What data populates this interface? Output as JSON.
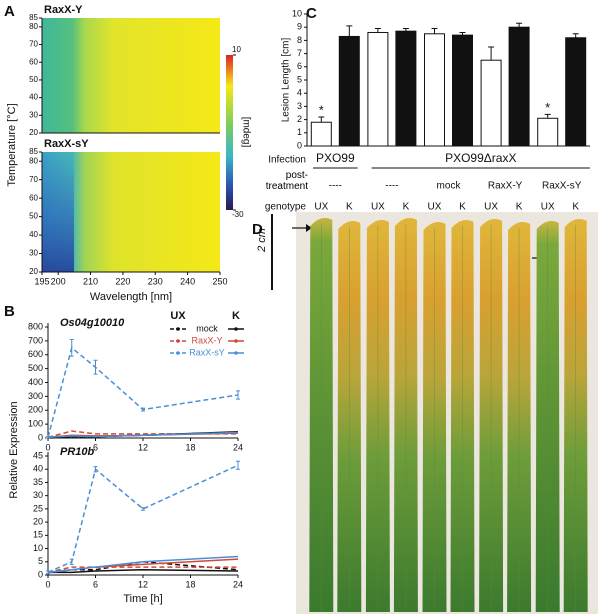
{
  "panel_labels": [
    "A",
    "B",
    "C",
    "D"
  ],
  "chart_data": [
    {
      "type": "heatmap",
      "panels": [
        {
          "title": "RaxX-Y"
        },
        {
          "title": "RaxX-sY"
        }
      ],
      "xlabel": "Wavelength [nm]",
      "ylabel": "Temperature [°C]",
      "xlim": [
        195,
        250
      ],
      "xticks": [
        195,
        200,
        210,
        220,
        230,
        240,
        250
      ],
      "ylim": [
        20,
        85
      ],
      "yticks": [
        20,
        30,
        40,
        50,
        60,
        70,
        80,
        85
      ],
      "colorbar": {
        "label": "[mdeg]",
        "lim": [
          -30,
          10
        ],
        "ticks": [
          -30,
          10
        ]
      }
    },
    {
      "type": "line",
      "title": "Os04g10010",
      "ylabel": "Relative Expression",
      "x": [
        0,
        3,
        6,
        12,
        24
      ],
      "xlim": [
        0,
        24
      ],
      "xticks": [
        0,
        6,
        12,
        18,
        24
      ],
      "ylim": [
        0,
        800
      ],
      "yticks": [
        0,
        100,
        200,
        300,
        400,
        500,
        600,
        700,
        800
      ],
      "legend": true,
      "series_groups": [
        {
          "name": "UX",
          "dashed": true,
          "series": [
            {
              "name": "mock",
              "color": "#111111",
              "values": [
                0,
                10,
                10,
                20,
                40
              ]
            },
            {
              "name": "RaxX-Y",
              "color": "#d0493a",
              "values": [
                5,
                50,
                30,
                30,
                30
              ]
            },
            {
              "name": "RaxX-sY",
              "color": "#4a8fd6",
              "values": [
                5,
                650,
                510,
                205,
                310
              ],
              "errors": [
                5,
                60,
                50,
                10,
                30
              ]
            }
          ]
        },
        {
          "name": "K",
          "dashed": false,
          "series": [
            {
              "color": "#111111",
              "values": [
                5,
                10,
                10,
                20,
                45
              ]
            },
            {
              "color": "#d0493a",
              "values": [
                5,
                20,
                15,
                20,
                35
              ]
            },
            {
              "color": "#4a8fd6",
              "values": [
                5,
                15,
                10,
                20,
                40
              ]
            }
          ]
        }
      ]
    },
    {
      "type": "line",
      "title": "PR10b",
      "xlabel": "Time [h]",
      "x": [
        0,
        3,
        6,
        12,
        24
      ],
      "xlim": [
        0,
        24
      ],
      "xticks": [
        0,
        6,
        12,
        18,
        24
      ],
      "ylim": [
        0,
        45
      ],
      "yticks": [
        0,
        5,
        10,
        15,
        20,
        25,
        30,
        35,
        40,
        45
      ],
      "legend": false,
      "series_groups": [
        {
          "dashed": true,
          "series": [
            {
              "color": "#111111",
              "values": [
                1,
                2,
                2,
                5,
                2
              ]
            },
            {
              "color": "#d0493a",
              "values": [
                1,
                3,
                3,
                3,
                3
              ]
            },
            {
              "color": "#4a8fd6",
              "values": [
                1,
                5,
                40,
                25,
                41.5
              ],
              "errors": [
                0.5,
                1,
                1,
                0.5,
                1.5
              ]
            }
          ]
        },
        {
          "dashed": false,
          "series": [
            {
              "color": "#111111",
              "values": [
                1,
                1,
                1.5,
                2,
                1.5
              ]
            },
            {
              "color": "#d0493a",
              "values": [
                1,
                2,
                3,
                4,
                6
              ]
            },
            {
              "color": "#4a8fd6",
              "values": [
                1,
                2,
                3,
                5,
                7
              ]
            }
          ]
        }
      ]
    },
    {
      "type": "bar",
      "ylabel": "Lesion Length [cm]",
      "ylim": [
        0,
        10
      ],
      "yticks": [
        0,
        1,
        2,
        3,
        4,
        5,
        6,
        7,
        8,
        9,
        10
      ],
      "row_labels": [
        "Infection",
        "post-treatment",
        "genotype"
      ],
      "infection": [
        "PXO99",
        "PXO99ΔraxX"
      ],
      "categories": [
        "----",
        "----",
        "mock",
        "RaxX-Y",
        "RaxX-sY"
      ],
      "series": [
        {
          "name": "UX",
          "color": "#ffffff",
          "values": [
            1.8,
            8.6,
            8.5,
            6.5,
            2.1
          ],
          "errors": [
            0.4,
            0.3,
            0.4,
            1.0,
            0.3
          ],
          "annotations": [
            "*",
            null,
            null,
            null,
            "*"
          ]
        },
        {
          "name": "K",
          "color": "#111111",
          "values": [
            8.3,
            8.7,
            8.4,
            9.0,
            8.2
          ],
          "errors": [
            0.8,
            0.2,
            0.2,
            0.3,
            0.3
          ]
        }
      ]
    }
  ],
  "photo": {
    "scale_label": "2 cm"
  }
}
